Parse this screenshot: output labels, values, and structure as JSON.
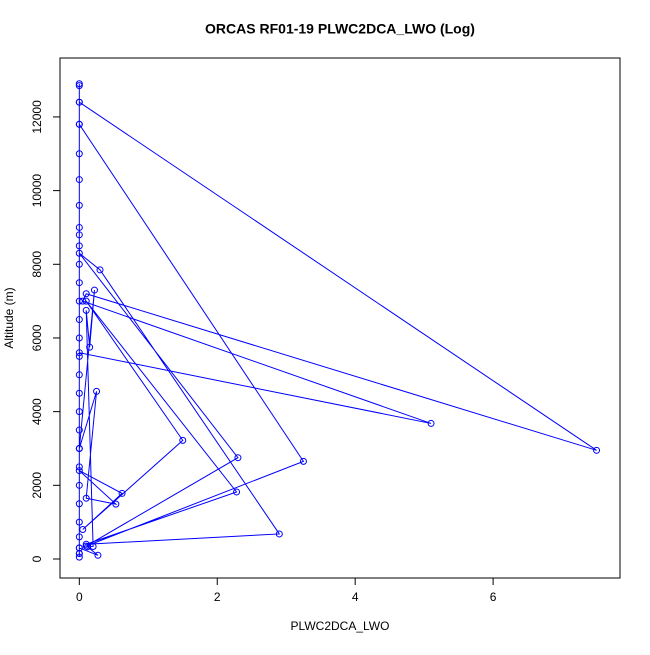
{
  "chart_data": {
    "type": "line",
    "title": "ORCAS RF01-19 PLWC2DCA_LWO (Log)",
    "x_label": "PLWC2DCA_LWO",
    "y_label": "Altitude (m)",
    "color": "#0000ff",
    "markers": true,
    "x": [
      0,
      0,
      0,
      0,
      0,
      0,
      0,
      0,
      0,
      0,
      0,
      0,
      0,
      0,
      0,
      0,
      0,
      0,
      0,
      0,
      0,
      0,
      0,
      0,
      0,
      0,
      0,
      0,
      0,
      7.5,
      0.1,
      0.05,
      5.1,
      0,
      0,
      0,
      3.25,
      0.1,
      2.3,
      0,
      0.3,
      2.9,
      0.1,
      2.28,
      0.1,
      1.5,
      0.05,
      0.62,
      0,
      0.53,
      0.1,
      0.25,
      0,
      0.22,
      0.15,
      0.1,
      0.2,
      0.12,
      0.27,
      0,
      0
    ],
    "values": [
      50,
      150,
      300,
      600,
      1000,
      1500,
      2000,
      2500,
      3000,
      3500,
      4000,
      4500,
      5000,
      5500,
      6000,
      6500,
      7000,
      7500,
      8000,
      8500,
      9000,
      9600,
      10300,
      11000,
      11800,
      12400,
      12900,
      12850,
      12400,
      2950,
      7200,
      7000,
      3680,
      5600,
      8800,
      11800,
      2650,
      350,
      2750,
      8300,
      7850,
      680,
      400,
      1820,
      7000,
      3220,
      800,
      1780,
      2400,
      1490,
      1650,
      4550,
      3000,
      7300,
      5750,
      6750,
      340,
      330,
      100,
      300,
      150
    ],
    "xlim": [
      -0.28,
      7.84
    ],
    "ylim": [
      -516,
      13600
    ],
    "xticks": [
      0,
      2,
      4,
      6
    ],
    "yticks": [
      0,
      2000,
      4000,
      6000,
      8000,
      10000,
      12000
    ]
  }
}
